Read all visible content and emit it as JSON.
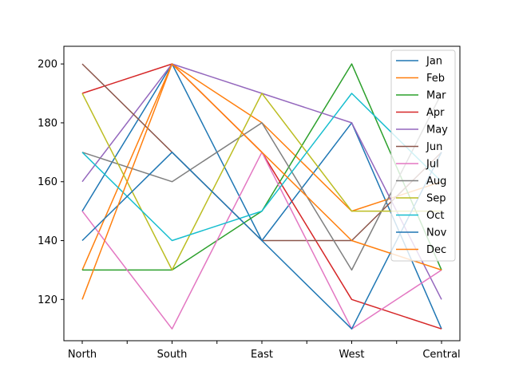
{
  "chart_data": {
    "type": "line",
    "categories": [
      "North",
      "South",
      "East",
      "West",
      "Central"
    ],
    "ylim": [
      106,
      206
    ],
    "yticks": [
      120,
      140,
      160,
      180,
      200
    ],
    "grid": false,
    "legend_position": "top-right",
    "series": [
      {
        "name": "Jan",
        "color": "#1f77b4",
        "values": [
          150,
          200,
          140,
          180,
          110
        ]
      },
      {
        "name": "Feb",
        "color": "#ff7f0e",
        "values": [
          130,
          200,
          180,
          150,
          160
        ]
      },
      {
        "name": "Mar",
        "color": "#2ca02c",
        "values": [
          130,
          130,
          150,
          200,
          130
        ]
      },
      {
        "name": "Apr",
        "color": "#d62728",
        "values": [
          190,
          200,
          170,
          120,
          110
        ]
      },
      {
        "name": "May",
        "color": "#9467bd",
        "values": [
          160,
          200,
          190,
          180,
          120
        ]
      },
      {
        "name": "Jun",
        "color": "#8c564b",
        "values": [
          200,
          170,
          140,
          140,
          170
        ]
      },
      {
        "name": "Jul",
        "color": "#e377c2",
        "values": [
          150,
          110,
          170,
          110,
          130
        ]
      },
      {
        "name": "Aug",
        "color": "#7f7f7f",
        "values": [
          170,
          160,
          180,
          130,
          190
        ]
      },
      {
        "name": "Sep",
        "color": "#bcbd22",
        "values": [
          190,
          130,
          190,
          150,
          150
        ]
      },
      {
        "name": "Oct",
        "color": "#17becf",
        "values": [
          170,
          140,
          150,
          190,
          160
        ]
      },
      {
        "name": "Nov",
        "color": "#1f77b4",
        "values": [
          140,
          170,
          140,
          110,
          170
        ]
      },
      {
        "name": "Dec",
        "color": "#ff7f0e",
        "values": [
          120,
          200,
          170,
          140,
          130
        ]
      }
    ]
  }
}
